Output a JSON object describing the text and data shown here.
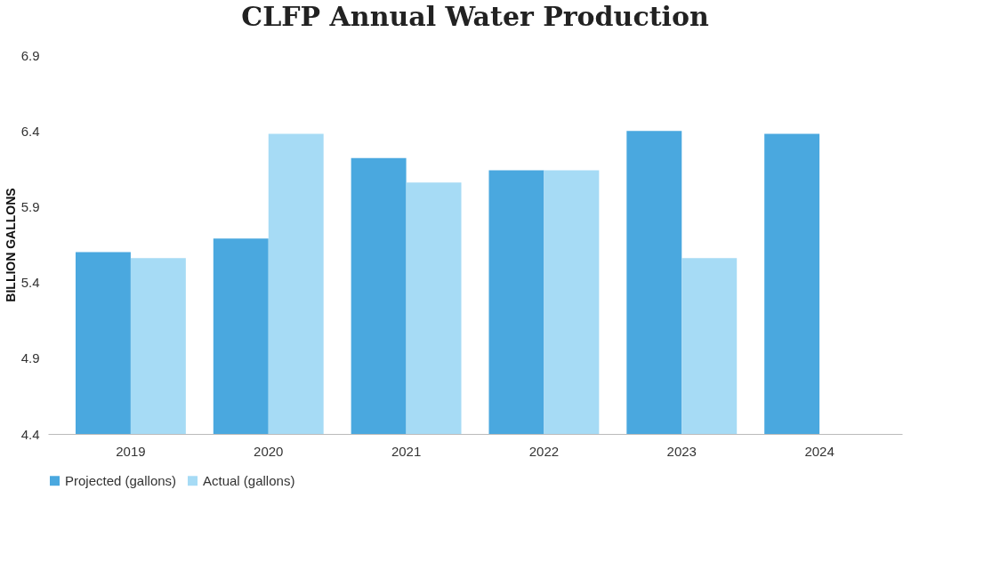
{
  "chart_data": {
    "type": "bar",
    "title": "CLFP Annual Water Production",
    "ylabel": "BILLION GALLONS",
    "categories": [
      "2019",
      "2020",
      "2021",
      "2022",
      "2023",
      "2024"
    ],
    "series": [
      {
        "name": "Projected (gallons)",
        "color": "#4aa8df",
        "values": [
          5.6,
          5.69,
          6.22,
          6.14,
          6.4,
          6.38
        ]
      },
      {
        "name": "Actual (gallons)",
        "color": "#a6dbf5",
        "values": [
          5.56,
          6.38,
          6.06,
          6.14,
          5.56,
          null
        ]
      }
    ],
    "ylim": [
      4.4,
      6.9
    ],
    "yticks": [
      4.4,
      4.9,
      5.4,
      5.9,
      6.4,
      6.9
    ],
    "grid": false,
    "legend": "bottom"
  }
}
